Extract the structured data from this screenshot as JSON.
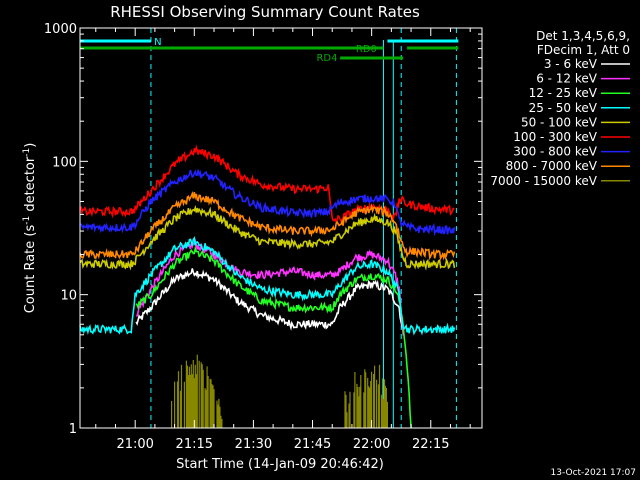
{
  "chart_data": {
    "type": "line",
    "title": "RHESSI Observing Summary Count Rates",
    "xlabel": "Start Time (14-Jan-09 20:46:42)",
    "ylabel_main": "Count Rate (s",
    "ylabel_sup1": "-1",
    "ylabel_mid": " detector",
    "ylabel_sup2": "-1",
    "ylabel_end": ")",
    "y_scale": "log",
    "ylim": [
      1,
      1000
    ],
    "xlim_min": [
      0,
      102
    ],
    "x_ticks": [
      {
        "m": 14,
        "label": "21:00"
      },
      {
        "m": 29,
        "label": "21:15"
      },
      {
        "m": 44,
        "label": "21:30"
      },
      {
        "m": 59,
        "label": "21:45"
      },
      {
        "m": 74,
        "label": "22:00"
      },
      {
        "m": 89,
        "label": "22:15"
      }
    ],
    "y_ticks": [
      {
        "v": 1,
        "label": "1"
      },
      {
        "v": 10,
        "label": "10"
      },
      {
        "v": 100,
        "label": "100"
      },
      {
        "v": 1000,
        "label": "1000"
      }
    ],
    "legend_header": [
      "Det 1,3,4,5,6,9,",
      "FDecim 1, Att 0"
    ],
    "series": [
      {
        "name": "3 - 6 keV",
        "color": "#ffffff",
        "x": [
          0,
          6,
          13,
          14,
          18,
          24,
          29,
          34,
          40,
          46,
          54,
          60,
          64,
          66,
          70,
          74,
          78,
          80,
          81,
          82,
          83,
          84
        ],
        "y": [
          null,
          null,
          null,
          6,
          8,
          13,
          15,
          13,
          9,
          7,
          6,
          6,
          6,
          8,
          11,
          12,
          11,
          9,
          8,
          5,
          null,
          null
        ]
      },
      {
        "name": "6 - 12 keV",
        "color": "#ff33ff",
        "x": [
          0,
          13,
          14,
          18,
          24,
          29,
          34,
          40,
          46,
          54,
          60,
          64,
          66,
          70,
          74,
          78,
          80,
          81,
          82,
          83
        ],
        "y": [
          null,
          null,
          7,
          11,
          20,
          24,
          20,
          15,
          14,
          15,
          14,
          14,
          15,
          19,
          20,
          18,
          14,
          11,
          5,
          null
        ]
      },
      {
        "name": "12 - 25 keV",
        "color": "#22ff22",
        "x": [
          0,
          13,
          14,
          18,
          24,
          29,
          34,
          40,
          46,
          54,
          60,
          64,
          66,
          70,
          74,
          78,
          80,
          81,
          82,
          83,
          84
        ],
        "y": [
          null,
          null,
          8,
          10,
          17,
          21,
          18,
          12,
          9,
          8,
          8,
          8,
          10,
          13,
          14,
          13,
          11,
          9,
          6,
          3,
          1
        ]
      },
      {
        "name": "25 - 50 keV",
        "color": "#00ffff",
        "x": [
          0,
          2,
          13,
          14,
          18,
          24,
          29,
          34,
          40,
          46,
          54,
          60,
          64,
          66,
          70,
          74,
          78,
          80,
          81,
          82,
          83,
          86,
          90,
          95
        ],
        "y": [
          5.5,
          5.5,
          5.5,
          10,
          14,
          22,
          25,
          21,
          14,
          11,
          10,
          10,
          10,
          12,
          16,
          17,
          15,
          12,
          10,
          6,
          5.5,
          5.5,
          5.5,
          5.5
        ]
      },
      {
        "name": "50 - 100 keV",
        "color": "#cccc00",
        "x": [
          0,
          13,
          14,
          18,
          24,
          29,
          34,
          40,
          46,
          54,
          60,
          64,
          66,
          70,
          74,
          78,
          80,
          81,
          82,
          83,
          86,
          90,
          95
        ],
        "y": [
          17,
          17,
          18,
          25,
          37,
          44,
          40,
          30,
          25,
          24,
          24,
          25,
          28,
          34,
          37,
          35,
          30,
          24,
          19,
          17,
          17,
          17,
          17
        ]
      },
      {
        "name": "100 - 300 keV",
        "color": "#ff0000",
        "x": [
          0,
          13,
          14,
          18,
          24,
          29,
          34,
          40,
          46,
          54,
          60,
          63,
          64,
          66,
          70,
          74,
          78,
          80,
          81,
          82,
          83,
          86,
          90,
          95
        ],
        "y": [
          42,
          42,
          44,
          60,
          95,
          120,
          110,
          80,
          67,
          62,
          62,
          64,
          36,
          37,
          43,
          46,
          43,
          38,
          52,
          50,
          48,
          46,
          44,
          43
        ]
      },
      {
        "name": "300 - 800 keV",
        "color": "#2222ff",
        "x": [
          0,
          13,
          14,
          18,
          24,
          29,
          34,
          40,
          46,
          54,
          60,
          63,
          64,
          66,
          70,
          74,
          78,
          80,
          81,
          82,
          83,
          86,
          90,
          95
        ],
        "y": [
          32,
          32,
          34,
          50,
          70,
          83,
          75,
          55,
          45,
          41,
          41,
          42,
          45,
          49,
          52,
          53,
          52,
          48,
          36,
          34,
          32,
          31,
          31,
          30
        ]
      },
      {
        "name": "800 - 7000 keV",
        "color": "#ff8800",
        "x": [
          0,
          13,
          14,
          18,
          24,
          29,
          34,
          40,
          46,
          54,
          60,
          64,
          66,
          70,
          74,
          78,
          80,
          81,
          82,
          83,
          86,
          90,
          95
        ],
        "y": [
          20,
          20,
          21,
          30,
          45,
          55,
          50,
          38,
          32,
          30,
          30,
          31,
          34,
          41,
          44,
          41,
          35,
          28,
          23,
          21,
          21,
          20,
          20
        ]
      },
      {
        "name": "7000 - 15000 keV",
        "color": "#888800",
        "x": [
          0,
          22,
          23,
          26,
          29,
          31,
          33,
          36,
          37,
          66,
          67,
          70,
          73,
          76,
          78,
          79,
          82
        ],
        "y": [
          null,
          null,
          1.5,
          2.6,
          3,
          2.6,
          2.2,
          1.4,
          null,
          null,
          1.6,
          2.2,
          2.6,
          2.4,
          1.8,
          null,
          null
        ]
      }
    ],
    "state_bars": {
      "N_label": "N",
      "RD0_label": "RD0",
      "RD4_label": "RD4",
      "N_segments": [
        [
          0,
          18
        ],
        [
          78,
          96
        ]
      ],
      "RD0_segments": [
        [
          0,
          77
        ],
        [
          83,
          96
        ]
      ],
      "RD4_segments": [
        [
          66,
          82
        ]
      ],
      "dashed_vertical_x": [
        18,
        81.5,
        95.5
      ],
      "solid_vertical_x": [
        77,
        79.5
      ]
    },
    "grid": false,
    "legend_placement": "right"
  },
  "footer": {
    "timestamp": "13-Oct-2021 17:07"
  },
  "colors": {
    "background": "#000000",
    "axis": "#ffffff",
    "N_bar": "#00ffff",
    "RD_bar": "#00aa00"
  }
}
